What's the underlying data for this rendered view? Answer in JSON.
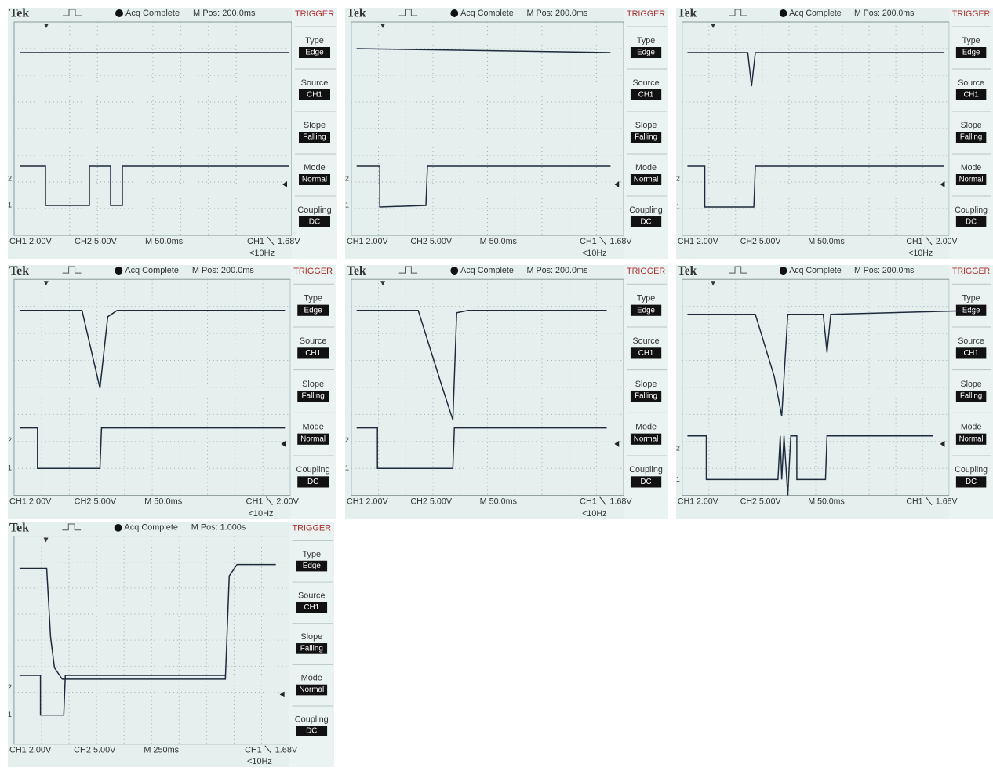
{
  "brand": "Tek",
  "status": "Acq Complete",
  "trigger_heading": "TRIGGER",
  "menu": [
    {
      "label": "Type",
      "value": "Edge"
    },
    {
      "label": "Source",
      "value": "CH1"
    },
    {
      "label": "Slope",
      "value": "Falling"
    },
    {
      "label": "Mode",
      "value": "Normal"
    },
    {
      "label": "Coupling",
      "value": "DC"
    }
  ],
  "ch1_scale": "CH1 2.00V",
  "ch2_scale": "CH2 5.00V",
  "trigger_source": "CH1",
  "markers": [
    "1",
    "2"
  ],
  "panels": [
    {
      "m_pos": "M Pos: 200.0ms",
      "timebase": "M 50.0ms",
      "trigger_level": "1.68V",
      "freq": "<10Hz"
    },
    {
      "m_pos": "M Pos: 200.0ms",
      "timebase": "M 50.0ms",
      "trigger_level": "1.68V",
      "freq": "<10Hz"
    },
    {
      "m_pos": "M Pos: 200.0ms",
      "timebase": "M 50.0ms",
      "trigger_level": "2.00V",
      "freq": "<10Hz"
    },
    {
      "m_pos": "M Pos: 200.0ms",
      "timebase": "M 50.0ms",
      "trigger_level": "2.00V",
      "freq": "<10Hz"
    },
    {
      "m_pos": "M Pos: 200.0ms",
      "timebase": "M 50.0ms",
      "trigger_level": "1.68V",
      "freq": "<10Hz"
    },
    {
      "m_pos": "M Pos: 200.0ms",
      "timebase": "M 50.0ms",
      "trigger_level": "1.68V"
    },
    {
      "m_pos": "M Pos: 1.000s",
      "timebase": "M 250ms",
      "trigger_level": "1.68V",
      "freq": "<10Hz"
    }
  ]
}
